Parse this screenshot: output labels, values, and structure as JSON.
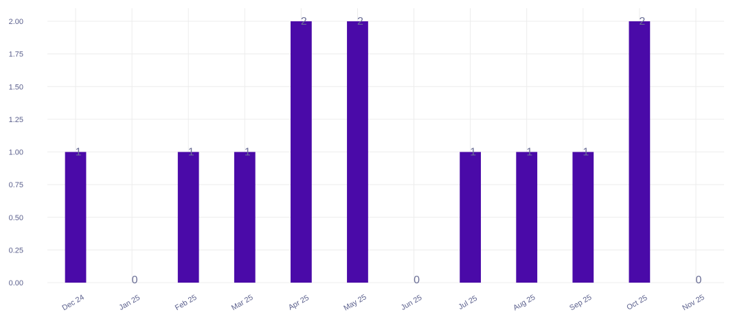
{
  "chart_data": {
    "type": "bar",
    "categories": [
      "Dec 24",
      "Jan 25",
      "Feb 25",
      "Mar 25",
      "Apr 25",
      "May 25",
      "Jun 25",
      "Jul 25",
      "Aug 25",
      "Sep 25",
      "Oct 25",
      "Nov 25"
    ],
    "values": [
      1,
      0,
      1,
      1,
      2,
      2,
      0,
      1,
      1,
      1,
      2,
      0
    ],
    "data_labels": [
      "1",
      "0",
      "1",
      "1",
      "2",
      "2",
      "0",
      "1",
      "1",
      "1",
      "2",
      "0"
    ],
    "title": "",
    "xlabel": "",
    "ylabel": "",
    "ylim": [
      0,
      2.1
    ],
    "yticks": [
      0,
      0.25,
      0.5,
      0.75,
      1,
      1.25,
      1.5,
      1.75,
      2
    ],
    "ytick_labels": [
      "0.00",
      "0.25",
      "0.50",
      "0.75",
      "1.00",
      "1.25",
      "1.50",
      "1.75",
      "2.00"
    ],
    "grid": true,
    "legend": "none",
    "bar_color": "#4a0aa8"
  }
}
